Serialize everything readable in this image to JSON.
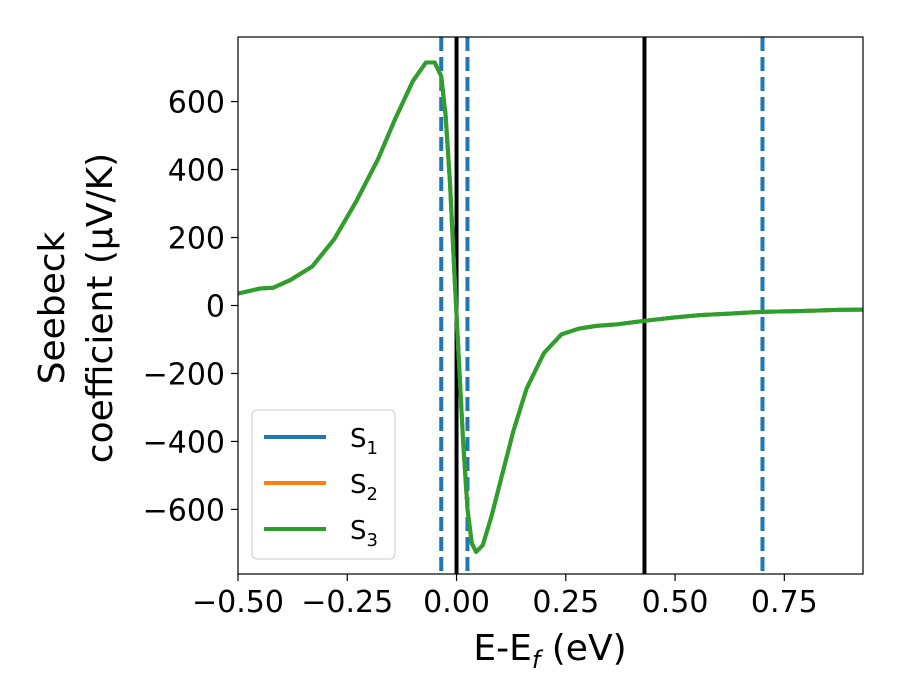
{
  "chart_data": {
    "type": "line",
    "title": "",
    "xlabel": "E-E",
    "xlabel_sub": "f",
    "xlabel_unit": " (eV)",
    "ylabel_line1": "Seebeck",
    "ylabel_line2": "coefficient  (μV/K)",
    "xlim": [
      -0.5,
      0.93
    ],
    "ylim": [
      -790,
      790
    ],
    "x_ticks": [
      {
        "value": -0.5,
        "label": "−0.50"
      },
      {
        "value": -0.25,
        "label": "−0.25"
      },
      {
        "value": 0.0,
        "label": "0.00"
      },
      {
        "value": 0.25,
        "label": "0.25"
      },
      {
        "value": 0.5,
        "label": "0.50"
      },
      {
        "value": 0.75,
        "label": "0.75"
      }
    ],
    "y_ticks": [
      {
        "value": 600,
        "label": "600"
      },
      {
        "value": 400,
        "label": "400"
      },
      {
        "value": 200,
        "label": "200"
      },
      {
        "value": 0,
        "label": "0"
      },
      {
        "value": -200,
        "label": "−200"
      },
      {
        "value": -400,
        "label": "−400"
      },
      {
        "value": -600,
        "label": "−600"
      }
    ],
    "grid": false,
    "legend_position": "bottom-left",
    "x": [
      -0.5,
      -0.45,
      -0.42,
      -0.38,
      -0.33,
      -0.28,
      -0.23,
      -0.18,
      -0.14,
      -0.1,
      -0.07,
      -0.05,
      -0.035,
      -0.025,
      -0.015,
      -0.005,
      0.005,
      0.015,
      0.025,
      0.035,
      0.045,
      0.06,
      0.08,
      0.1,
      0.13,
      0.16,
      0.2,
      0.24,
      0.28,
      0.32,
      0.37,
      0.43,
      0.5,
      0.56,
      0.62,
      0.68,
      0.72,
      0.77,
      0.82,
      0.87,
      0.93
    ],
    "series": [
      {
        "name": "S",
        "name_sub": "1",
        "color": "#1f77b4",
        "values": [
          35,
          50,
          52,
          75,
          115,
          195,
          305,
          430,
          550,
          660,
          715,
          715,
          675,
          560,
          360,
          100,
          -150,
          -400,
          -600,
          -700,
          -725,
          -705,
          -620,
          -520,
          -370,
          -245,
          -140,
          -85,
          -68,
          -60,
          -55,
          -45,
          -35,
          -28,
          -24,
          -20,
          -18,
          -17,
          -15,
          -13,
          -12
        ]
      },
      {
        "name": "S",
        "name_sub": "2",
        "color": "#ff7f0e",
        "values": [
          35,
          50,
          52,
          75,
          115,
          195,
          305,
          430,
          550,
          660,
          715,
          715,
          675,
          560,
          360,
          100,
          -150,
          -400,
          -600,
          -700,
          -725,
          -705,
          -620,
          -520,
          -370,
          -245,
          -140,
          -85,
          -68,
          -60,
          -55,
          -45,
          -35,
          -28,
          -24,
          -20,
          -18,
          -17,
          -15,
          -13,
          -12
        ]
      },
      {
        "name": "S",
        "name_sub": "3",
        "color": "#2ca02c",
        "values": [
          35,
          50,
          52,
          75,
          115,
          195,
          305,
          430,
          550,
          660,
          715,
          715,
          675,
          560,
          360,
          100,
          -150,
          -400,
          -600,
          -700,
          -725,
          -705,
          -620,
          -520,
          -370,
          -245,
          -140,
          -85,
          -68,
          -60,
          -55,
          -45,
          -35,
          -28,
          -24,
          -20,
          -18,
          -17,
          -15,
          -13,
          -12
        ]
      }
    ],
    "vertical_lines": [
      {
        "x": -0.035,
        "style": "dashed",
        "color": "#1f77b4"
      },
      {
        "x": 0.0,
        "style": "solid",
        "color": "#000000"
      },
      {
        "x": 0.025,
        "style": "dashed",
        "color": "#1f77b4"
      },
      {
        "x": 0.43,
        "style": "solid",
        "color": "#000000"
      },
      {
        "x": 0.7,
        "style": "dashed",
        "color": "#1f77b4"
      }
    ]
  }
}
